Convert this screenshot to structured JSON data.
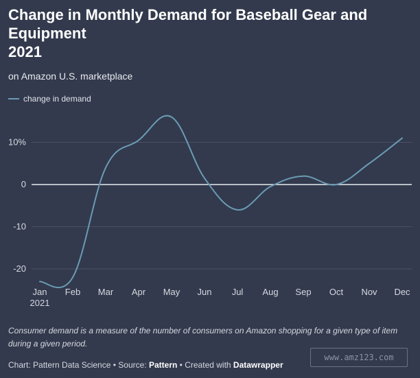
{
  "title_lines": [
    "Change in Monthly Demand for Baseball Gear and",
    "Equipment",
    "2021"
  ],
  "subtitle": "on Amazon U.S. marketplace",
  "note": "Consumer demand is a measure of the number of consumers on Amazon shopping for a given type of item during a given period.",
  "footer": {
    "chart_by": "Chart: Pattern Data Science",
    "sep1": " • ",
    "source_label": "Source: ",
    "source": "Pattern",
    "sep2": " • ",
    "created_label": "Created with ",
    "created_with": "Datawrapper"
  },
  "watermark": "www.amz123.com",
  "colors": {
    "background": "#333a4d",
    "line": "#6b9bb4",
    "grid": "#4a5164",
    "zero_line": "#e8eaef"
  },
  "chart_data": {
    "type": "line",
    "title": "Change in Monthly Demand for Baseball Gear and Equipment 2021",
    "subtitle": "on Amazon U.S. marketplace",
    "x": [
      "Jan",
      "Feb",
      "Mar",
      "Apr",
      "May",
      "Jun",
      "Jul",
      "Aug",
      "Sep",
      "Oct",
      "Nov",
      "Dec"
    ],
    "x_year_label": "2021",
    "series": [
      {
        "name": "change in demand",
        "values": [
          -23,
          -22,
          4,
          10.5,
          16,
          1.5,
          -6,
          -0.5,
          2,
          0,
          5,
          11
        ]
      }
    ],
    "y_ticks": [
      {
        "value": 10,
        "label": "10%"
      },
      {
        "value": 0,
        "label": "0"
      },
      {
        "value": -10,
        "label": "-10"
      },
      {
        "value": -20,
        "label": "-20"
      }
    ],
    "ylim": [
      -23,
      17
    ],
    "grid": true,
    "legend": "top-left"
  }
}
